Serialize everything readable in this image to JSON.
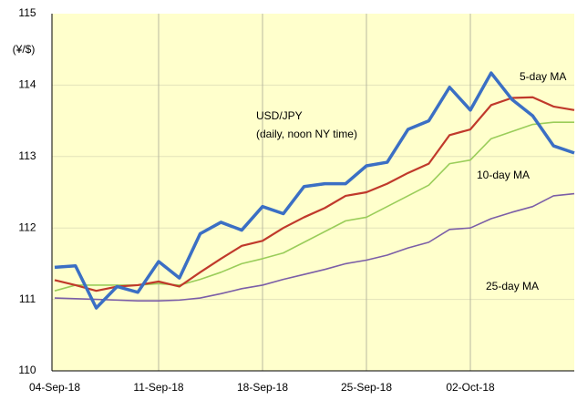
{
  "chart_data": {
    "type": "line",
    "y_label": "(¥/$)",
    "subtitle": "(daily, noon NY time)",
    "categories": [
      "04-Sep-18",
      null,
      null,
      null,
      null,
      "11-Sep-18",
      null,
      null,
      null,
      null,
      "18-Sep-18",
      null,
      null,
      null,
      null,
      "25-Sep-18",
      null,
      null,
      null,
      null,
      "02-Oct-18",
      null,
      null,
      null,
      null,
      null
    ],
    "series": [
      {
        "name": "USD/JPY",
        "color": "#3b6fc4",
        "values": [
          111.45,
          111.47,
          110.88,
          111.18,
          111.1,
          111.53,
          111.3,
          111.92,
          112.08,
          111.97,
          112.3,
          112.2,
          112.58,
          112.62,
          112.62,
          112.87,
          112.92,
          113.38,
          113.5,
          113.97,
          113.65,
          114.17,
          113.8,
          113.57,
          113.15,
          113.05
        ]
      },
      {
        "name": "5-day  MA",
        "color": "#c0392b",
        "values": [
          111.27,
          111.2,
          111.12,
          111.18,
          111.2,
          111.25,
          111.18,
          111.38,
          111.57,
          111.75,
          111.82,
          112.0,
          112.15,
          112.28,
          112.45,
          112.5,
          112.62,
          112.77,
          112.9,
          113.3,
          113.38,
          113.72,
          113.82,
          113.83,
          113.7,
          113.65
        ]
      },
      {
        "name": "10-day  MA",
        "color": "#9acd5a",
        "values": [
          111.12,
          111.2,
          111.2,
          111.2,
          111.2,
          111.22,
          111.2,
          111.28,
          111.38,
          111.5,
          111.57,
          111.65,
          111.8,
          111.95,
          112.1,
          112.15,
          112.3,
          112.45,
          112.6,
          112.9,
          112.95,
          113.25,
          113.35,
          113.45,
          113.48,
          113.48
        ]
      },
      {
        "name": "25-day  MA",
        "color": "#7b5ea7",
        "values": [
          111.02,
          111.01,
          111.0,
          110.99,
          110.98,
          110.98,
          110.99,
          111.02,
          111.08,
          111.15,
          111.2,
          111.28,
          111.35,
          111.42,
          111.5,
          111.55,
          111.62,
          111.72,
          111.8,
          111.98,
          112.0,
          112.13,
          112.22,
          112.3,
          112.45,
          112.48
        ]
      }
    ],
    "ylim": [
      110,
      115
    ],
    "yticks": [
      110,
      111,
      112,
      113,
      114,
      115
    ],
    "grid": true
  }
}
